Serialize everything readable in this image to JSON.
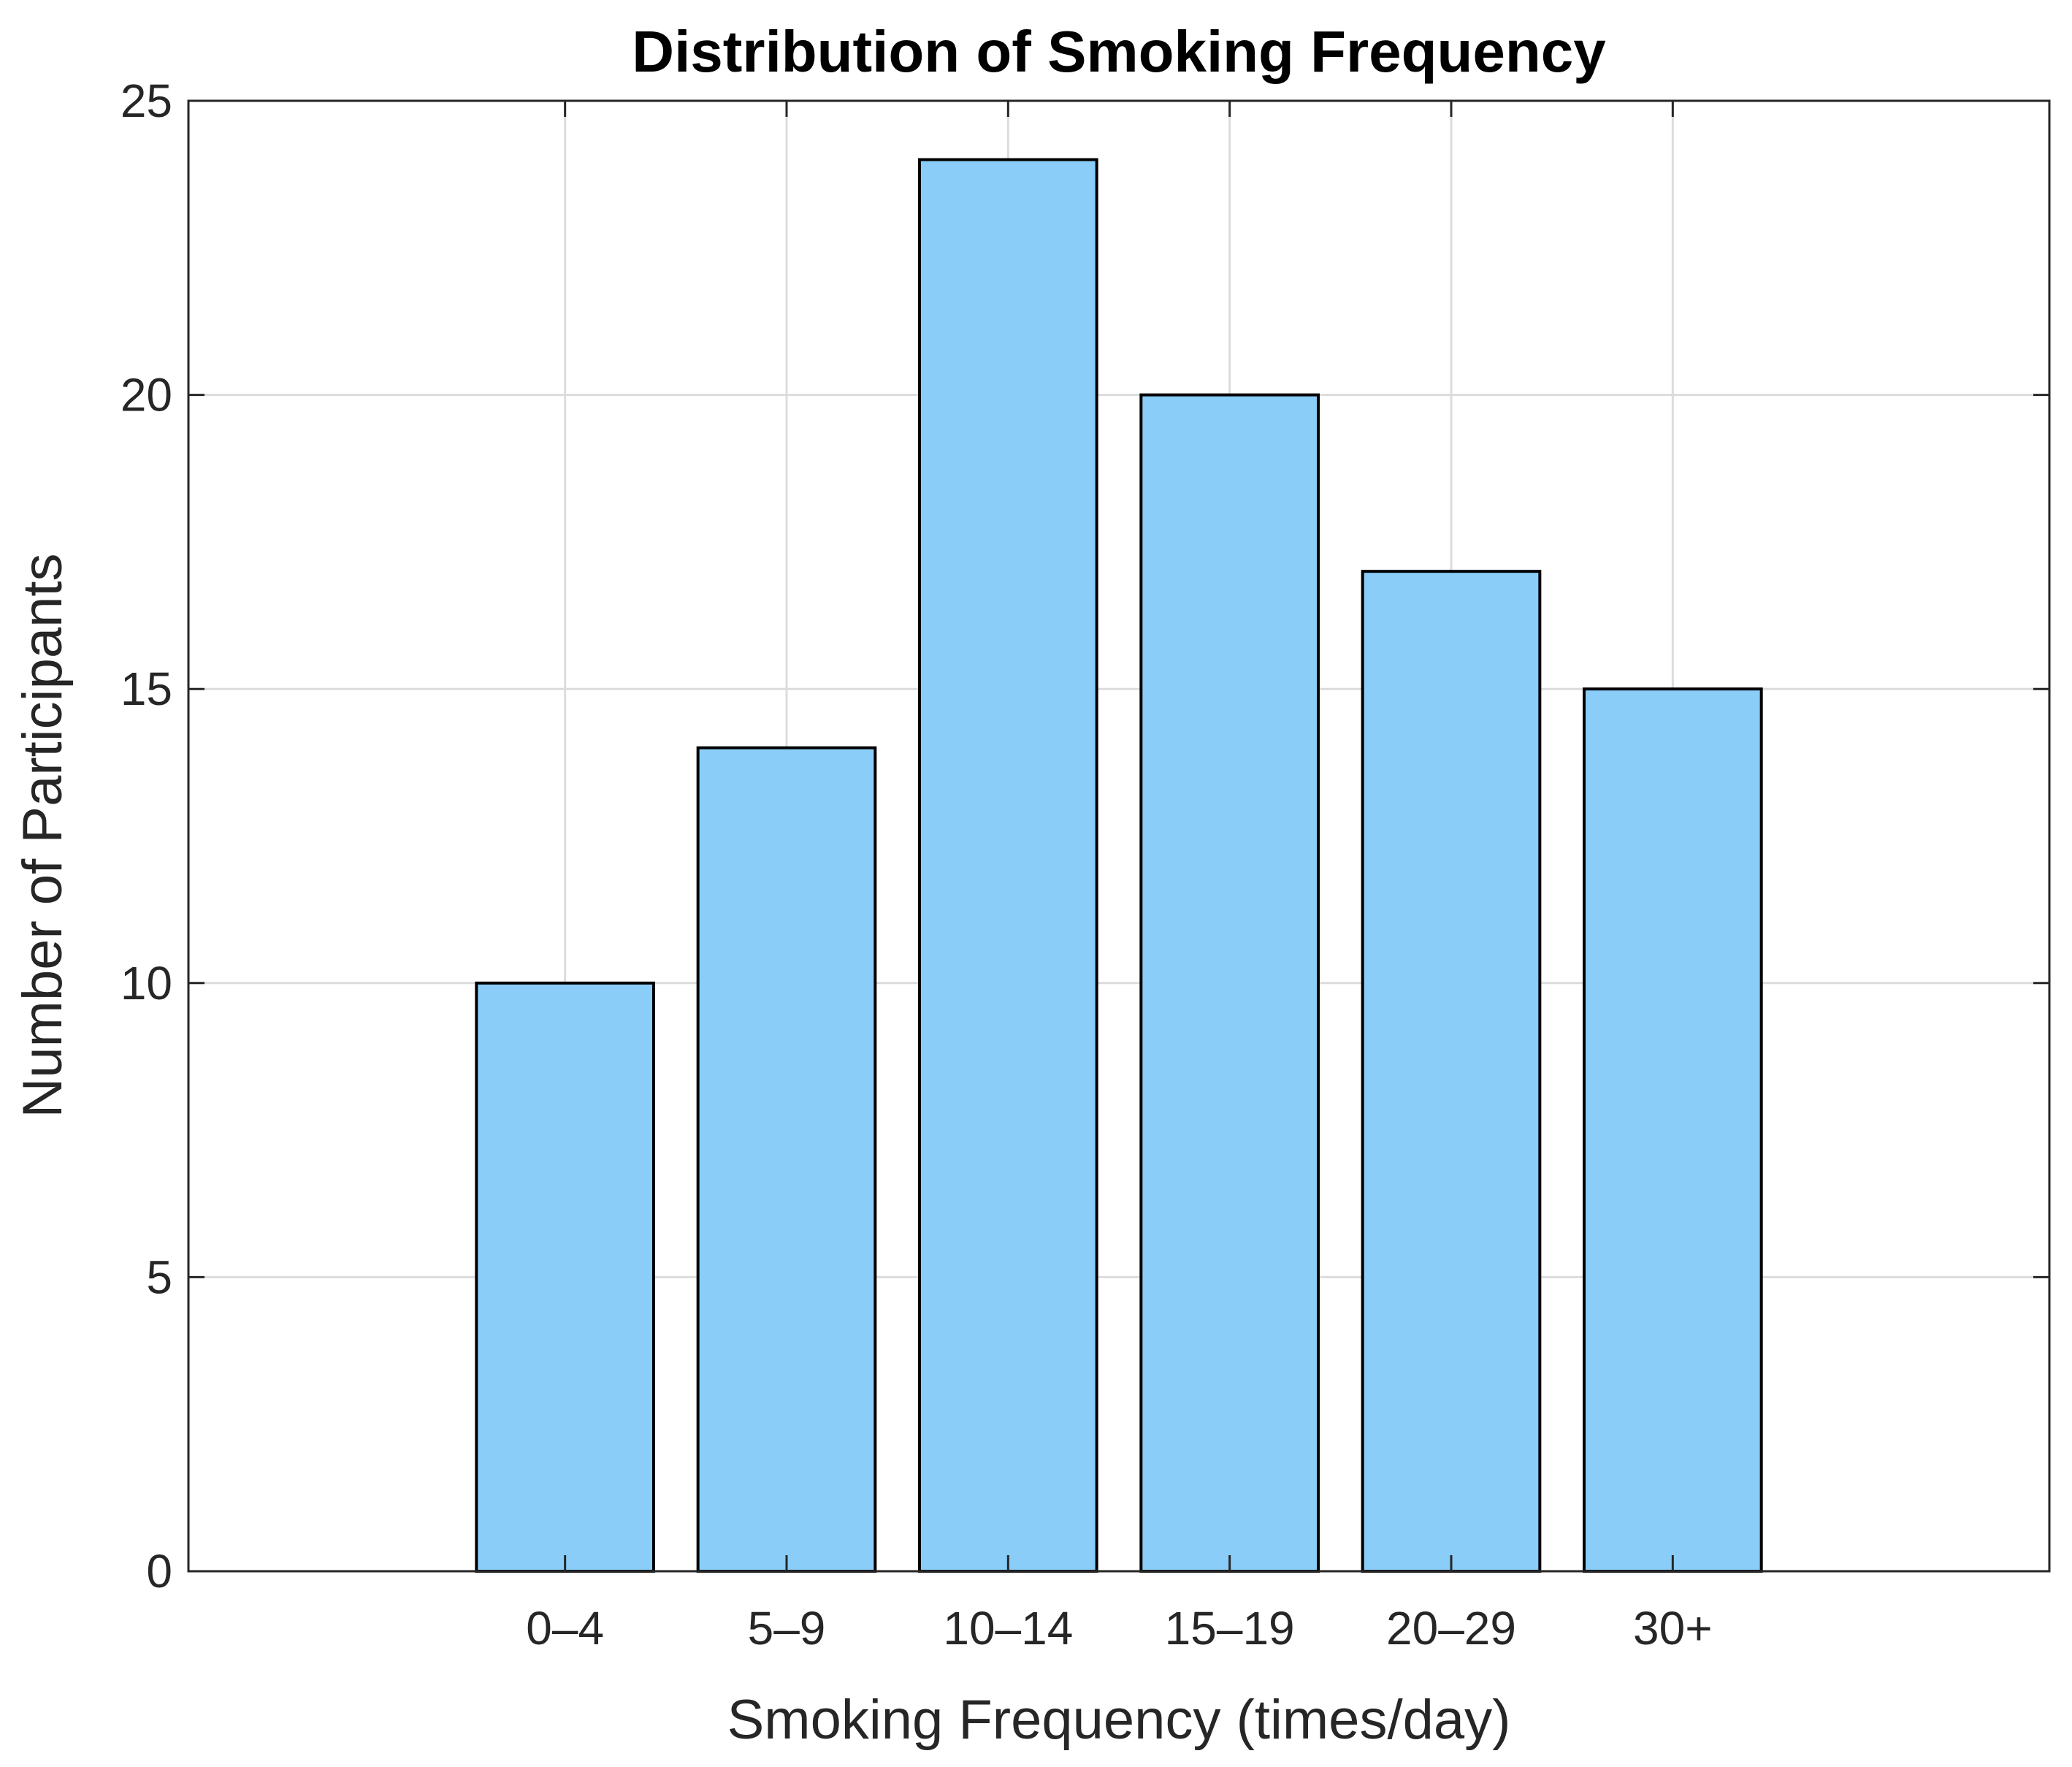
{
  "chart_data": {
    "type": "bar",
    "title": "Distribution of Smoking Frequency",
    "xlabel": "Smoking Frequency (times/day)",
    "ylabel": "Number of Participants",
    "categories": [
      "0–4",
      "5–9",
      "10–14",
      "15–19",
      "20–29",
      "30+"
    ],
    "values": [
      10,
      14,
      24,
      20,
      17,
      15
    ],
    "ylim": [
      0,
      25
    ],
    "yticks": [
      0,
      5,
      10,
      15,
      20,
      25
    ],
    "yticklabels": [
      "0",
      "5",
      "10",
      "15",
      "20",
      "25"
    ],
    "grid": true,
    "bar_color": "#89cdf8",
    "edge_color": "#000000"
  }
}
